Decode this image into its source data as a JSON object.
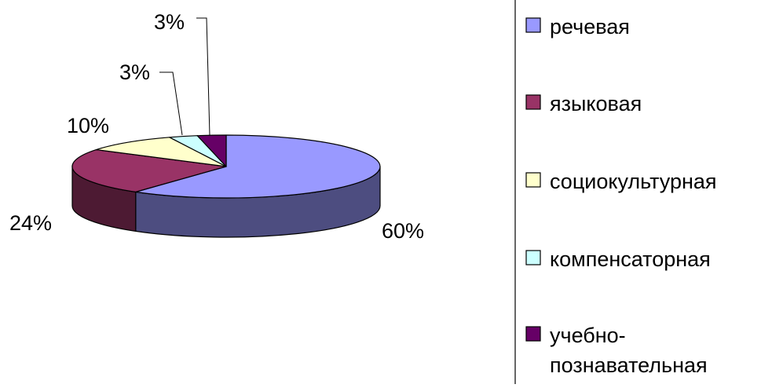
{
  "chart_data": {
    "type": "pie",
    "style": "3d",
    "categories": [
      "речевая",
      "языковая",
      "социокультурная",
      "компенсаторная",
      "учебно-познавательная"
    ],
    "values": [
      60,
      24,
      10,
      3,
      3
    ],
    "data_labels": [
      "60%",
      "24%",
      "10%",
      "3%",
      "3%"
    ],
    "colors": [
      "#9999ff",
      "#993366",
      "#ffffcc",
      "#ccffff",
      "#660066"
    ],
    "legend": {
      "position": "right",
      "lines": [
        [
          "речевая"
        ],
        [
          "языковая"
        ],
        [
          "социокультурная"
        ],
        [
          "компенсаторная"
        ],
        [
          "учебно-",
          "познавательная"
        ]
      ]
    }
  }
}
